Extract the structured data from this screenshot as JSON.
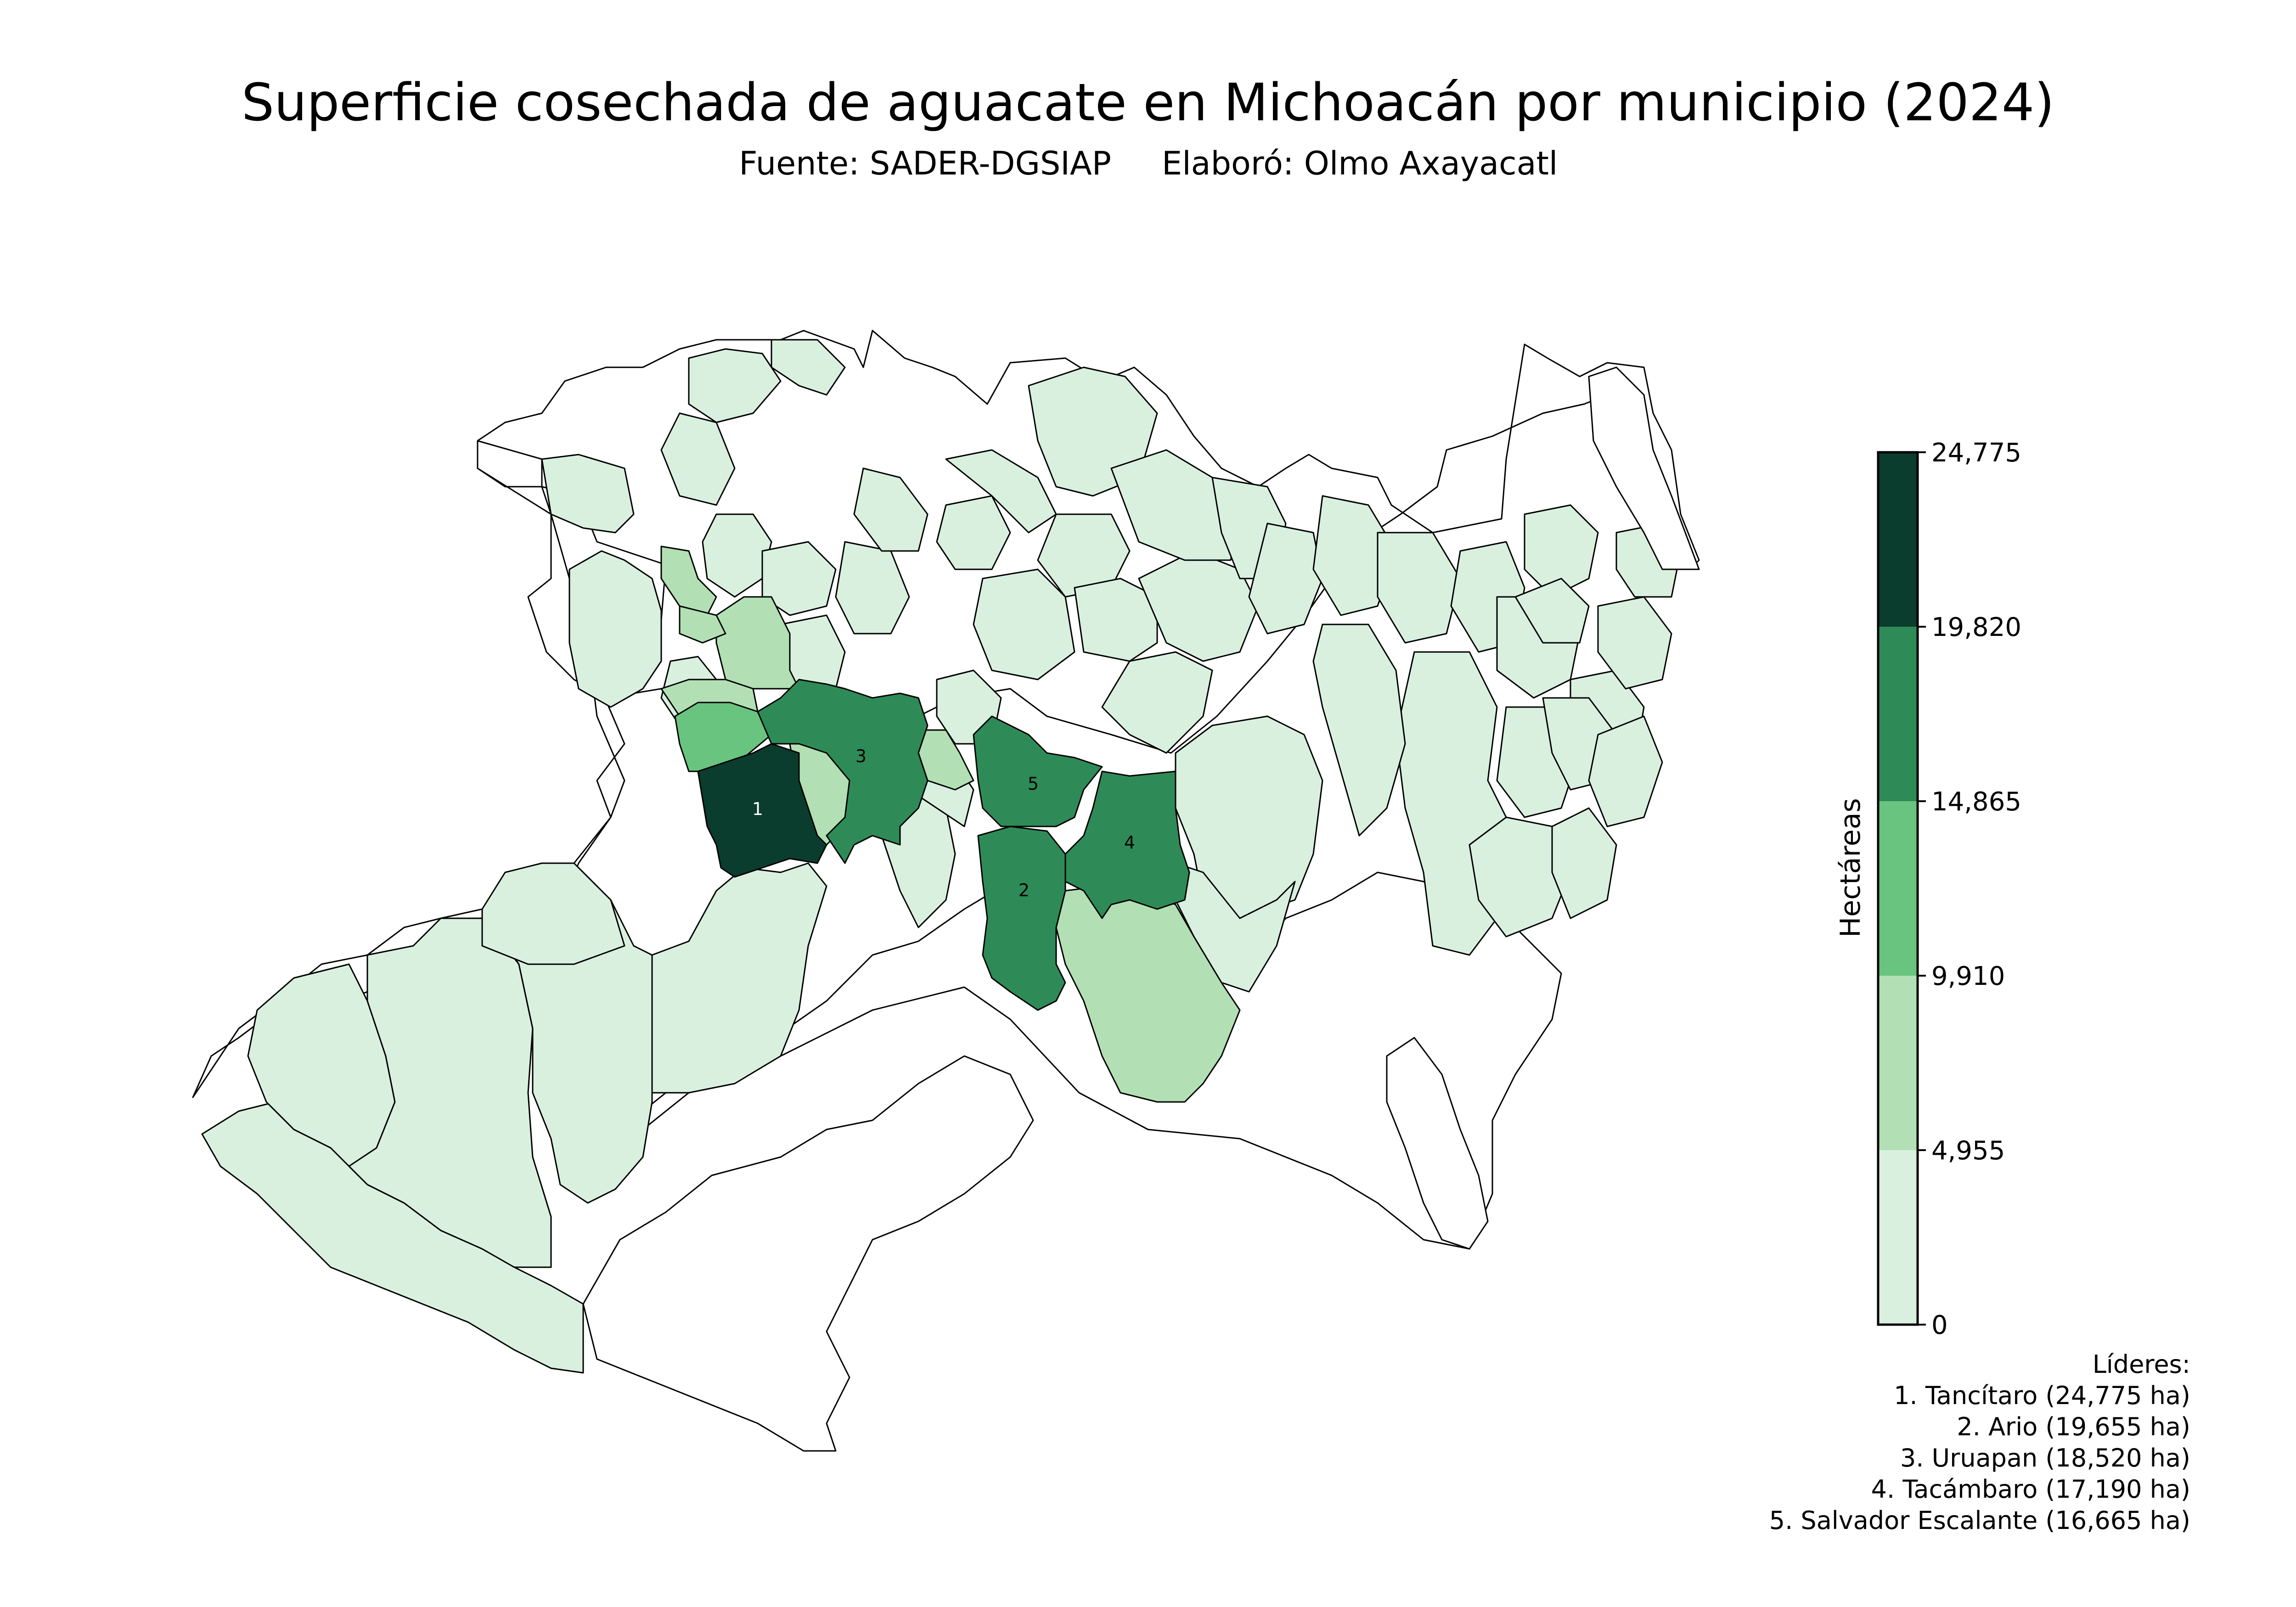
{
  "title": "Superficie cosechada de aguacate en Michoacán por municipio (2024)",
  "subtitle": {
    "source": "Fuente: SADER-DGSIAP",
    "author": "Elaboró: Olmo Axayacatl"
  },
  "colorbar": {
    "label": "Hectáreas",
    "ticks": [
      "0",
      "4,955",
      "9,910",
      "14,865",
      "19,820",
      "24,775"
    ],
    "bins": [
      {
        "min": 0,
        "max": 4955,
        "color": "#d9f0df"
      },
      {
        "min": 4955,
        "max": 9910,
        "color": "#b2e0b4"
      },
      {
        "min": 9910,
        "max": 14865,
        "color": "#69c47f"
      },
      {
        "min": 14865,
        "max": 19820,
        "color": "#2e8b57"
      },
      {
        "min": 19820,
        "max": 24775,
        "color": "#0a3d2e"
      }
    ],
    "no_data_color": "#ffffff"
  },
  "leaders": {
    "heading": "Líderes:",
    "items": [
      "1. Tancítaro (24,775 ha)",
      "2. Ario (19,655 ha)",
      "3. Uruapan (18,520 ha)",
      "4. Tacámbaro (17,190 ha)",
      "5. Salvador Escalante (16,665 ha)"
    ]
  },
  "rank_labels": [
    {
      "rank": "1",
      "value": 24775
    },
    {
      "rank": "2",
      "value": 19655
    },
    {
      "rank": "3",
      "value": 18520
    },
    {
      "rank": "4",
      "value": 17190
    },
    {
      "rank": "5",
      "value": 16665
    }
  ]
}
